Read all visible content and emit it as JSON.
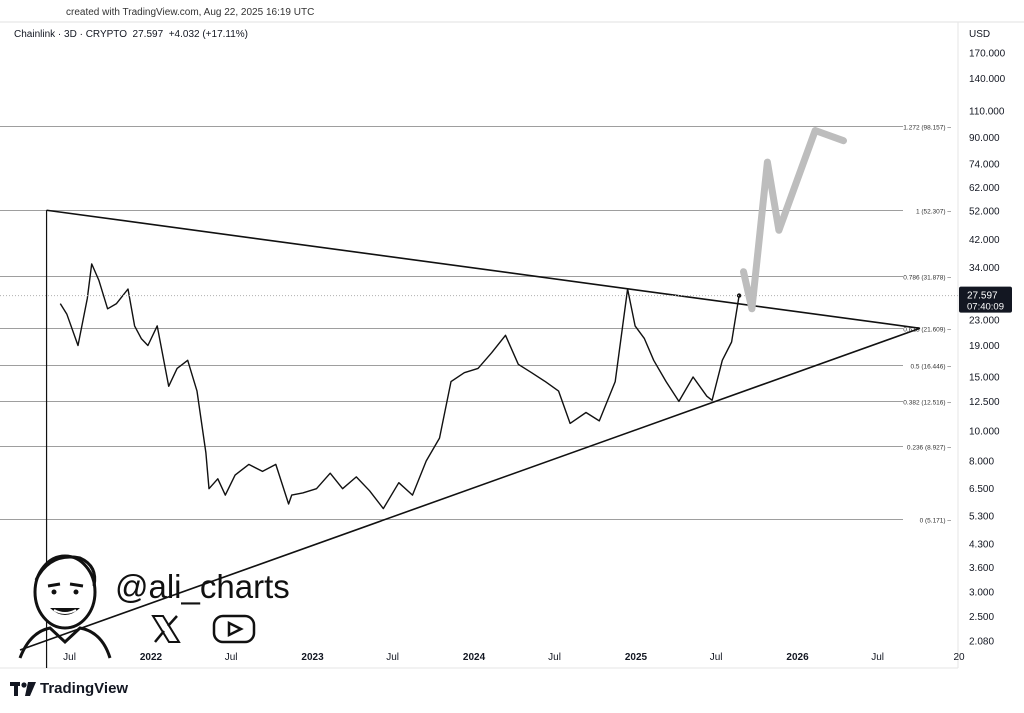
{
  "header": {
    "created_text": "created with TradingView.com, Aug 22, 2025 16:19 UTC",
    "symbol_text": "Chainlink · 3D · CRYPTO  27.597  +4.032 (+17.11%)",
    "currency": "USD"
  },
  "branding": {
    "handle": "@ali_charts",
    "logo_text": "TradingView"
  },
  "colors": {
    "price_line": "#111111",
    "fib_line": "#9e9e9e",
    "projection": "#bdbdbd",
    "price_badge_bg": "#131722",
    "price_badge_text": "#ffffff"
  },
  "chart_data": {
    "type": "line",
    "symbol": "Chainlink",
    "interval": "3D",
    "exchange": "CRYPTO",
    "last_price": 27.597,
    "change": 4.032,
    "change_pct": 17.11,
    "countdown": "07:40:09",
    "y_scale": "log",
    "y_ticks": [
      "170.000",
      "140.000",
      "110.000",
      "90.000",
      "74.000",
      "62.000",
      "52.000",
      "42.000",
      "34.000",
      "23.000",
      "19.000",
      "15.000",
      "12.500",
      "10.000",
      "8.000",
      "6.500",
      "5.300",
      "4.300",
      "3.600",
      "3.000",
      "2.500",
      "2.080"
    ],
    "x_ticks": [
      "Jul",
      "2022",
      "Jul",
      "2023",
      "Jul",
      "2024",
      "Jul",
      "2025",
      "Jul",
      "2026",
      "Jul",
      "20"
    ],
    "fib_levels": [
      {
        "label": "1.272 (98.157)",
        "price": 98.157
      },
      {
        "label": "1 (52.307)",
        "price": 52.307
      },
      {
        "label": "0.786 (31.878)",
        "price": 31.878
      },
      {
        "label": "0.618 (21.609)",
        "price": 21.609
      },
      {
        "label": "0.5 (16.446)",
        "price": 16.446
      },
      {
        "label": "0.382 (12.516)",
        "price": 12.516
      },
      {
        "label": "0.236 (8.927)",
        "price": 8.927
      },
      {
        "label": "0 (5.171)",
        "price": 5.171
      }
    ],
    "series": [
      {
        "x": [
          "2021-06-10",
          "2021-06-25",
          "2021-07-20",
          "2021-08-10",
          "2021-08-20",
          "2021-09-05",
          "2021-09-25",
          "2021-10-15",
          "2021-11-10",
          "2021-11-25",
          "2021-12-10",
          "2021-12-25",
          "2022-01-15",
          "2022-02-10",
          "2022-03-01",
          "2022-03-25",
          "2022-04-15",
          "2022-05-05",
          "2022-05-12",
          "2022-06-01",
          "2022-06-18",
          "2022-07-10",
          "2022-08-10",
          "2022-09-10",
          "2022-10-10",
          "2022-11-08",
          "2022-11-15",
          "2022-12-10",
          "2023-01-10",
          "2023-02-10",
          "2023-03-10",
          "2023-04-10",
          "2023-05-10",
          "2023-06-10",
          "2023-07-15",
          "2023-08-15",
          "2023-09-15",
          "2023-10-15",
          "2023-11-10",
          "2023-12-10",
          "2024-01-10",
          "2024-02-10",
          "2024-03-12",
          "2024-04-10",
          "2024-05-10",
          "2024-06-10",
          "2024-07-10",
          "2024-08-05",
          "2024-09-10",
          "2024-10-10",
          "2024-11-15",
          "2024-12-13",
          "2024-12-30",
          "2025-01-20",
          "2025-02-10",
          "2025-03-10",
          "2025-04-08",
          "2025-05-10",
          "2025-06-10",
          "2025-06-22",
          "2025-07-15",
          "2025-08-05",
          "2025-08-22"
        ],
        "y": [
          26,
          24,
          19,
          27,
          35,
          31,
          25,
          26,
          29,
          22,
          20,
          19,
          22,
          14,
          16,
          17,
          13.5,
          8.5,
          6.5,
          7,
          6.2,
          7.2,
          7.8,
          7.4,
          7.8,
          5.8,
          6.2,
          6.3,
          6.5,
          7.3,
          6.5,
          7.1,
          6.4,
          5.6,
          6.8,
          6.2,
          8,
          9.5,
          14.5,
          15.5,
          16,
          18,
          20.5,
          16.5,
          15.5,
          14.5,
          13.5,
          10.6,
          11.5,
          10.8,
          14.5,
          29,
          22,
          20,
          17,
          14.5,
          12.5,
          15,
          13,
          12.6,
          17,
          19.5,
          27.6
        ]
      }
    ],
    "projection": {
      "x": [
        "2025-09-01",
        "2025-09-20",
        "2025-10-25",
        "2025-11-20",
        "2026-02-10",
        "2026-04-15"
      ],
      "y": [
        33,
        25,
        75,
        45,
        95,
        88
      ]
    }
  }
}
